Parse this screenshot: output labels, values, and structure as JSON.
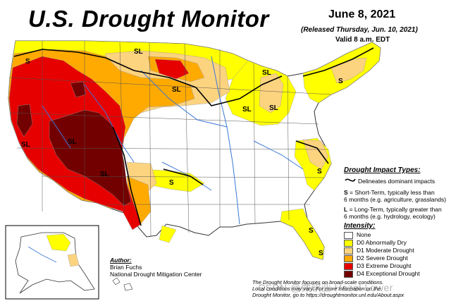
{
  "title": "U.S. Drought Monitor",
  "date": "June 8, 2021",
  "released": "(Released Thursday, Jun. 10, 2021)",
  "valid": "Valid 8 a.m. EDT",
  "impact": {
    "title": "Drought Impact Types:",
    "line_desc": "Delineates dominant impacts",
    "s_label": "S",
    "s_desc_1": " = Short-Term, typically less than",
    "s_desc_2": "6 months (e.g. agriculture, grasslands)",
    "l_label": "L",
    "l_desc_1": " = Long-Term, typically greater than",
    "l_desc_2": "6 months (e.g. hydrology, ecology)"
  },
  "intensity": {
    "title": "Intensity:",
    "levels": [
      {
        "label": "None",
        "color": "#ffffff"
      },
      {
        "label": "D0 Abnormally Dry",
        "color": "#ffff00"
      },
      {
        "label": "D1 Moderate Drought",
        "color": "#fcd37f"
      },
      {
        "label": "D2 Severe Drought",
        "color": "#ffaa00"
      },
      {
        "label": "D3 Extreme Drought",
        "color": "#e60000"
      },
      {
        "label": "D4 Exceptional Drought",
        "color": "#730000"
      }
    ]
  },
  "author": {
    "heading": "Author:",
    "name": "Brian Fuchs",
    "org": "National Drought Mitigation Center"
  },
  "footer": {
    "line1": "The Drought Monitor focuses on broad-scale conditions.",
    "line2": "Local conditions may vary. For more information on the",
    "line3": "Drought Monitor, go to https://droughtmonitor.unl.edu/About.aspx"
  },
  "watermark": "CSDN @微软亚 Hazel Lower",
  "region_labels": [
    "S",
    "SL",
    "SL",
    "SL",
    "SL",
    "SL",
    "SL",
    "SL",
    "SL",
    "S",
    "S",
    "S",
    "S",
    "S"
  ]
}
